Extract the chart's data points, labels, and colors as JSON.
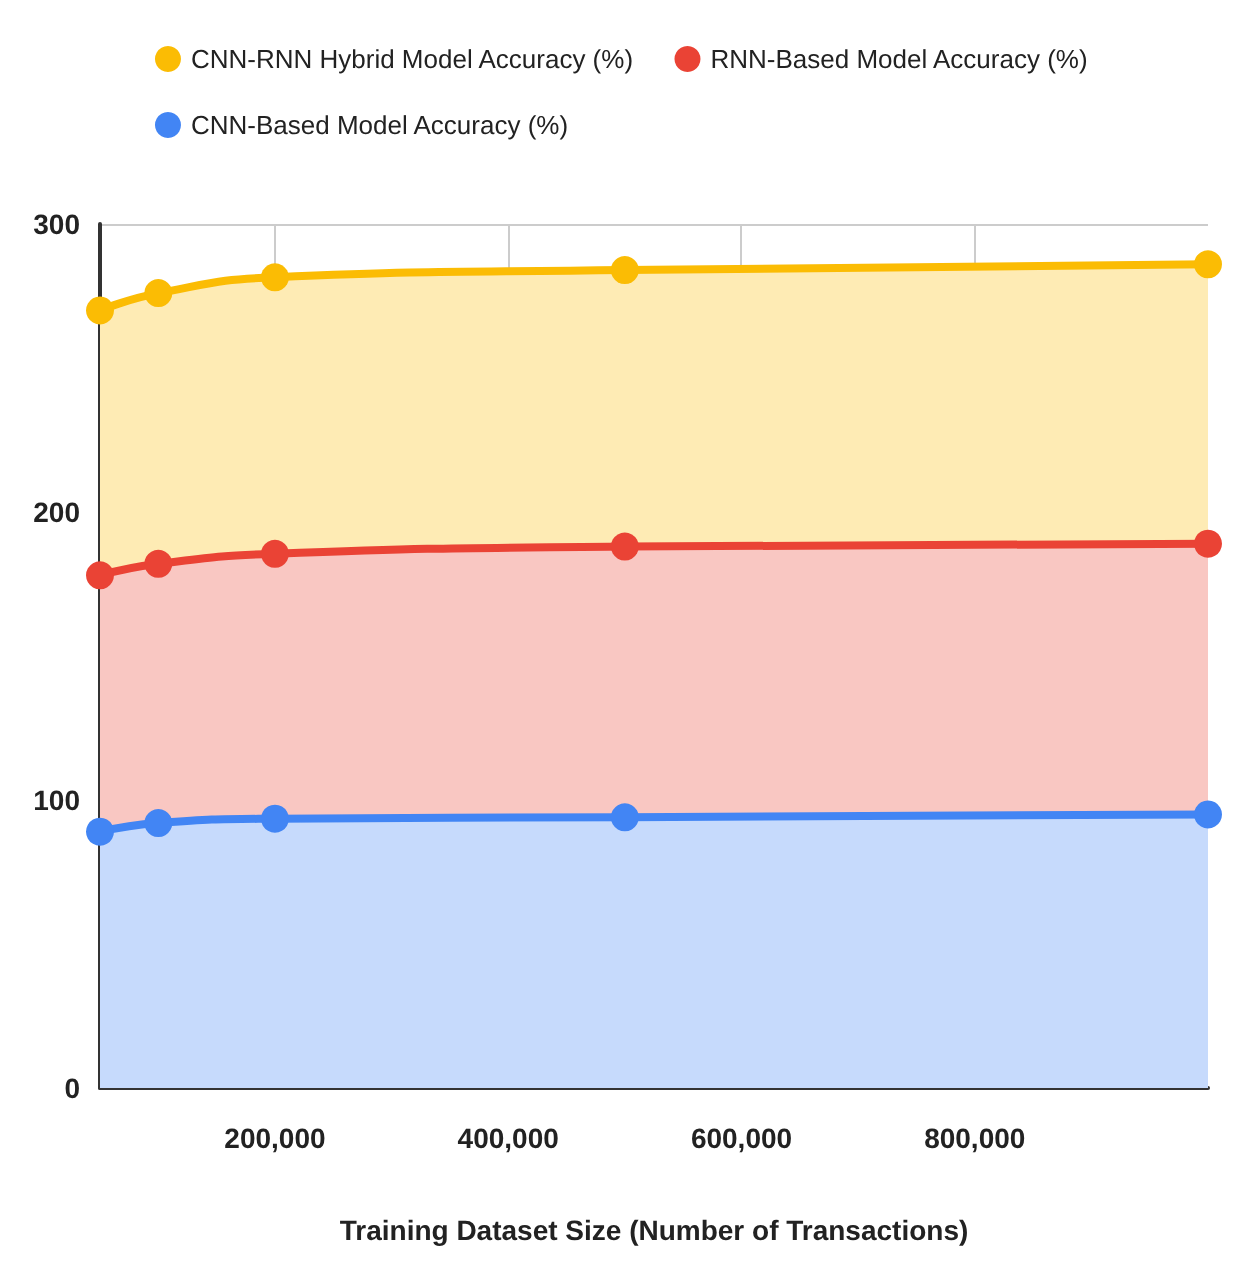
{
  "chart_data": {
    "type": "area",
    "stacked": true,
    "xlabel": "Training Dataset Size (Number of Transactions)",
    "x": [
      50000,
      100000,
      200000,
      500000,
      1000000
    ],
    "series": [
      {
        "name": "CNN-Based Model Accuracy (%)",
        "color": "#4285f4",
        "values": [
          89,
          92,
          93.5,
          94,
          95
        ]
      },
      {
        "name": "RNN-Based Model Accuracy (%)",
        "color": "#ea4335",
        "values": [
          89,
          90,
          92,
          94,
          94
        ]
      },
      {
        "name": "CNN-RNN Hybrid Model Accuracy (%)",
        "color": "#fbbc04",
        "values": [
          92,
          94,
          96,
          96,
          97
        ]
      }
    ],
    "xlim": [
      50000,
      1000000
    ],
    "xticks": [
      {
        "value": 200000,
        "label": "200,000"
      },
      {
        "value": 400000,
        "label": "400,000"
      },
      {
        "value": 600000,
        "label": "600,000"
      },
      {
        "value": 800000,
        "label": "800,000"
      }
    ],
    "ylim": [
      0,
      300
    ],
    "yticks": [
      0,
      100,
      200,
      300
    ],
    "grid": true,
    "legend": "top",
    "marker": "circle",
    "line_style": "solid"
  }
}
